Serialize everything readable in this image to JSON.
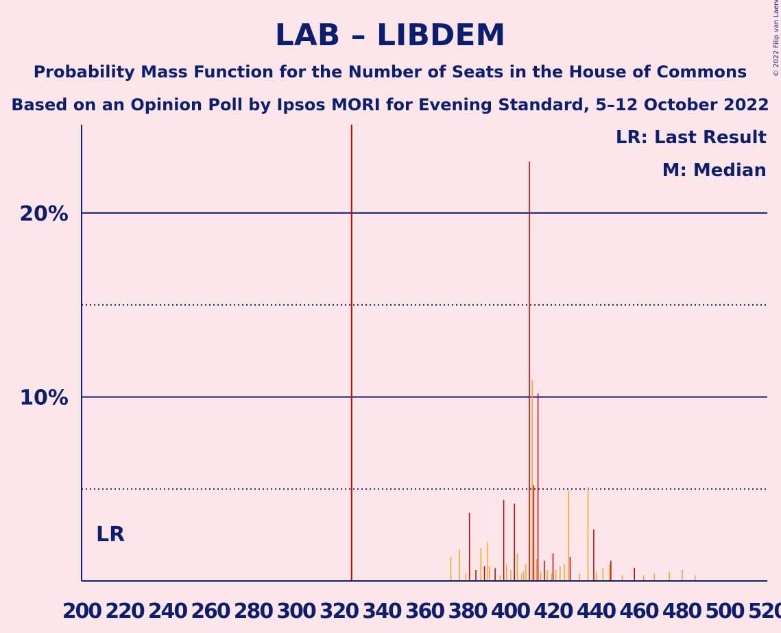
{
  "header": {
    "title": "LAB – LIBDEM",
    "subtitle": "Probability Mass Function for the Number of Seats in the House of Commons",
    "subtitle2": "Based on an Opinion Poll by Ipsos MORI for Evening Standard, 5–12 October 2022"
  },
  "copyright": "© 2022 Filip van Laenen",
  "legend": {
    "last_result": "LR: Last Result",
    "median": "M: Median"
  },
  "lr_label": "LR",
  "colors": {
    "background": "#fde6ea",
    "axis": "#0b1f6e",
    "last_result_line": "#cc0000",
    "bar_red": "#cc0000",
    "bar_orange": "#f5a623"
  },
  "chart_data": {
    "type": "bar",
    "xlim": [
      200,
      520
    ],
    "ylim": [
      0,
      24.8
    ],
    "x_ticks": [
      200,
      220,
      240,
      260,
      280,
      300,
      320,
      340,
      360,
      380,
      400,
      420,
      440,
      460,
      480,
      500,
      520
    ],
    "x_tick_labels": [
      "200",
      "220",
      "240",
      "260",
      "280",
      "300",
      "320",
      "340",
      "360",
      "380",
      "400",
      "420",
      "440",
      "460",
      "480",
      "500",
      "520"
    ],
    "y_ticks_labeled": [
      {
        "value": 10,
        "label": "10%"
      },
      {
        "value": 20,
        "label": "20%"
      }
    ],
    "y_gridlines_dotted": [
      5,
      15
    ],
    "last_result": 326,
    "legend_position": "top-right",
    "series": [
      {
        "name": "LAB",
        "color": "#cc0000",
        "x": [
          381,
          384,
          388,
          393,
          397,
          402,
          409,
          411,
          413,
          416,
          420,
          428,
          439,
          447,
          458
        ],
        "values": [
          3.7,
          0.6,
          0.8,
          0.7,
          4.4,
          4.2,
          22.8,
          5.2,
          10.2,
          1.1,
          1.5,
          1.3,
          2.8,
          1.1,
          0.7
        ]
      },
      {
        "name": "LIBDEM",
        "color": "#f5a623",
        "x": [
          372,
          376,
          379,
          386,
          389,
          390,
          395,
          398,
          400,
          403,
          405,
          406,
          407,
          410,
          412,
          414,
          417,
          419,
          421,
          423,
          425,
          427,
          432,
          436,
          440,
          443,
          446,
          452,
          462,
          467,
          474,
          480,
          486
        ],
        "values": [
          1.3,
          1.7,
          0.4,
          1.8,
          2.1,
          0.8,
          0.3,
          0.9,
          0.6,
          1.5,
          0.4,
          0.5,
          0.9,
          10.9,
          1.2,
          0.5,
          0.6,
          0.4,
          0.6,
          0.8,
          0.9,
          4.9,
          0.4,
          5.1,
          0.5,
          0.7,
          0.9,
          0.3,
          0.3,
          0.4,
          0.5,
          0.6,
          0.3
        ]
      }
    ]
  }
}
